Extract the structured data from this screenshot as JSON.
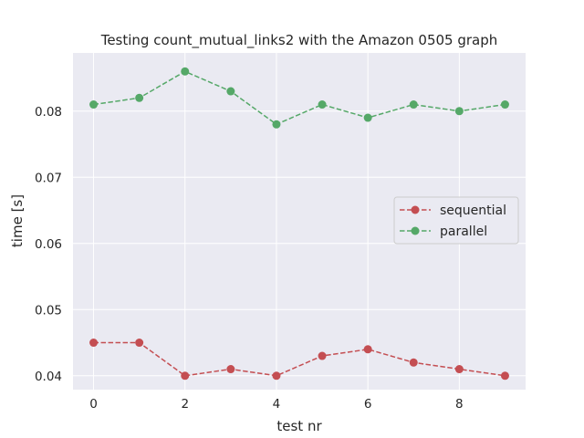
{
  "chart_data": {
    "type": "line",
    "title": "Testing count_mutual_links2 with the Amazon 0505 graph",
    "xlabel": "test nr",
    "ylabel": "time [s]",
    "x": [
      0,
      1,
      2,
      3,
      4,
      5,
      6,
      7,
      8,
      9
    ],
    "xlim": [
      -0.45,
      9.45
    ],
    "ylim": [
      0.0379,
      0.0888
    ],
    "xticks": [
      0,
      2,
      4,
      6,
      8
    ],
    "yticks": [
      0.04,
      0.05,
      0.06,
      0.07,
      0.08
    ],
    "xtick_labels": [
      "0",
      "2",
      "4",
      "6",
      "8"
    ],
    "ytick_labels": [
      "0.04",
      "0.05",
      "0.06",
      "0.07",
      "0.08"
    ],
    "grid": true,
    "legend_position": "center-right",
    "series": [
      {
        "name": "sequential",
        "color": "#c44e52",
        "line_style": "dashed",
        "marker": "circle",
        "values": [
          0.045,
          0.045,
          0.04,
          0.041,
          0.04,
          0.043,
          0.044,
          0.042,
          0.041,
          0.04
        ]
      },
      {
        "name": "parallel",
        "color": "#55a868",
        "line_style": "dashed",
        "marker": "circle",
        "values": [
          0.081,
          0.082,
          0.086,
          0.083,
          0.078,
          0.081,
          0.079,
          0.081,
          0.08,
          0.081
        ]
      }
    ]
  },
  "style": {
    "plot_background": "#eaeaf2",
    "grid_color": "#ffffff",
    "text_color": "#262626"
  }
}
